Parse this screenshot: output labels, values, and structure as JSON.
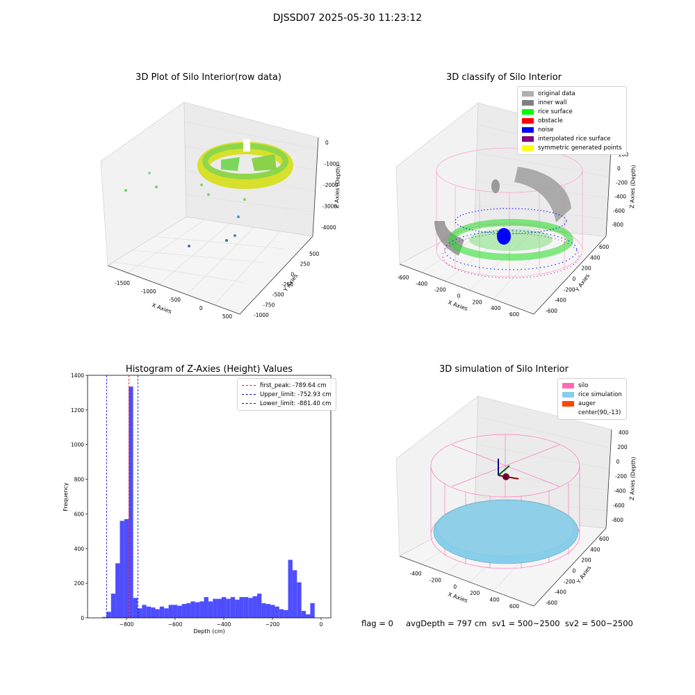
{
  "suptitle": "DJSSD07 2025-05-30 11:23:12",
  "status_text": "flag = 0     avgDepth = 797 cm  sv1 = 500~2500  sv2 = 500~2500",
  "chart_data": [
    {
      "type": "scatter",
      "title": "3D Plot of Silo Interior(row data)",
      "xlabel": "X Axies",
      "ylabel": "Y Axies",
      "zlabel": "Z Axies (Depth)",
      "x_ticks": [
        "-1500",
        "-1000",
        "-500",
        "0",
        "500"
      ],
      "y_ticks": [
        "-1000",
        "-750",
        "-500",
        "-250",
        "0",
        "250",
        "500"
      ],
      "z_ticks": [
        "0",
        "-1000",
        "-2000",
        "-3000",
        "-4000"
      ]
    },
    {
      "type": "scatter",
      "title": "3D classify of Silo Interior",
      "xlabel": "X Axies",
      "ylabel": "Y Axies",
      "zlabel": "Z Axies (Depth)",
      "x_ticks": [
        "-600",
        "-400",
        "-200",
        "0",
        "200",
        "400",
        "600"
      ],
      "y_ticks": [
        "-600",
        "-400",
        "-200",
        "0",
        "200",
        "400",
        "600"
      ],
      "z_ticks": [
        "200",
        "0",
        "-200",
        "-400",
        "-600",
        "-800"
      ],
      "legend": [
        {
          "label": "original data",
          "color": "#b0b0b0"
        },
        {
          "label": "inner wall",
          "color": "#808080"
        },
        {
          "label": "rice surface",
          "color": "#00ff00"
        },
        {
          "label": "obstacle",
          "color": "#ff0000"
        },
        {
          "label": "noise",
          "color": "#0000ff"
        },
        {
          "label": "interpolated rice surface",
          "color": "#800080"
        },
        {
          "label": "symmetric generated points",
          "color": "#ffff00"
        }
      ]
    },
    {
      "type": "bar",
      "title": "Histogram of Z-Axies (Height) Values",
      "xlabel": "Depth (cm)",
      "ylabel": "Frequency",
      "xlim": [
        -960,
        40
      ],
      "ylim": [
        0,
        1400
      ],
      "x_ticks": [
        -800,
        -600,
        -400,
        -200,
        0
      ],
      "y_ticks": [
        0,
        200,
        400,
        600,
        800,
        1000,
        1200,
        1400
      ],
      "bin_width": 18.2,
      "bin_start": -900,
      "values": [
        5,
        35,
        140,
        315,
        560,
        570,
        1335,
        115,
        55,
        75,
        65,
        60,
        50,
        65,
        55,
        75,
        75,
        70,
        80,
        85,
        95,
        90,
        95,
        120,
        95,
        110,
        110,
        120,
        110,
        120,
        105,
        120,
        120,
        115,
        125,
        140,
        85,
        80,
        75,
        65,
        50,
        45,
        335,
        275,
        205,
        40,
        20,
        85
      ],
      "bar_color": "#4444ff",
      "lines": [
        {
          "label": "first_peak: -789.64 cm",
          "x": -789.64,
          "color": "#ff0000"
        },
        {
          "label": "Upper_limit: -752.93 cm",
          "x": -752.93,
          "color": "#0000cc"
        },
        {
          "label": "Lower_limit: -881.40 cm",
          "x": -881.4,
          "color": "#0000cc"
        }
      ],
      "legend_position": "top-right"
    },
    {
      "type": "scatter",
      "title": "3D simulation of Silo Interior",
      "xlabel": "X Axies",
      "ylabel": "Y Axies",
      "zlabel": "Z Axies (Depth)",
      "x_ticks": [
        "-400",
        "-200",
        "0",
        "200",
        "400",
        "600"
      ],
      "y_ticks": [
        "-600",
        "-400",
        "-200",
        "0",
        "200",
        "400",
        "600"
      ],
      "z_ticks": [
        "400",
        "200",
        "0",
        "-200",
        "-400",
        "-600",
        "-800"
      ],
      "legend": [
        {
          "label": "silo",
          "color": "#ff69b4"
        },
        {
          "label": "rice simulation",
          "color": "#87ceeb"
        },
        {
          "label": "auger",
          "color": "#ff4500"
        },
        {
          "label": "center(90,-13)",
          "color": "#ffffff"
        }
      ]
    }
  ]
}
